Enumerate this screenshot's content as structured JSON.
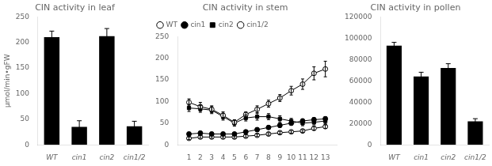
{
  "chart_data": [
    {
      "type": "bar",
      "title": "CIN activity in leaf",
      "categories": [
        "WT",
        "cin1",
        "cin2",
        "cin1/2"
      ],
      "values": [
        210,
        35,
        212,
        36
      ],
      "errors": [
        12,
        12,
        15,
        10
      ],
      "color": "#000000",
      "ylabel": "μmol/min•gFW",
      "ylim": [
        0,
        250
      ],
      "yticks": [
        0,
        50,
        100,
        150,
        200,
        250
      ],
      "grid": false
    },
    {
      "type": "line",
      "title": "CIN activity in stem",
      "x": [
        1,
        2,
        3,
        4,
        5,
        6,
        7,
        8,
        9,
        10,
        11,
        12,
        13
      ],
      "xlim": [
        0,
        14
      ],
      "xticks": [
        1,
        2,
        3,
        4,
        5,
        6,
        7,
        8,
        9,
        10,
        11,
        12,
        13
      ],
      "ylim": [
        0,
        250
      ],
      "yticks": [
        0,
        50,
        100,
        150,
        200,
        250
      ],
      "grid": false,
      "legend": "upper left",
      "series": [
        {
          "name": "WT",
          "color": "#000000",
          "marker": "open_circle",
          "values": [
            98,
            88,
            82,
            68,
            52,
            70,
            82,
            95,
            108,
            125,
            140,
            165,
            175
          ],
          "errors": [
            8,
            10,
            8,
            8,
            6,
            6,
            8,
            8,
            8,
            10,
            12,
            15,
            18
          ]
        },
        {
          "name": "cin1",
          "color": "#000000",
          "marker": "circle",
          "values": [
            25,
            27,
            25,
            25,
            25,
            30,
            35,
            40,
            45,
            50,
            55,
            58,
            60
          ],
          "errors": [
            4,
            4,
            4,
            4,
            3,
            4,
            4,
            4,
            5,
            5,
            5,
            5,
            5
          ]
        },
        {
          "name": "cin2",
          "color": "#000000",
          "marker": "square",
          "values": [
            85,
            83,
            80,
            65,
            50,
            62,
            65,
            65,
            60,
            55,
            50,
            52,
            55
          ],
          "errors": [
            8,
            8,
            8,
            8,
            7,
            7,
            8,
            7,
            7,
            6,
            6,
            6,
            6
          ]
        },
        {
          "name": "cin1/2",
          "color": "#000000",
          "marker": "open_circle",
          "values": [
            15,
            18,
            18,
            18,
            18,
            20,
            22,
            25,
            28,
            30,
            32,
            38,
            42
          ],
          "errors": [
            3,
            3,
            3,
            3,
            3,
            3,
            3,
            3,
            3,
            3,
            3,
            4,
            4
          ]
        }
      ]
    },
    {
      "type": "bar",
      "title": "CIN activity in pollen",
      "categories": [
        "WT",
        "cin1",
        "cin2",
        "cin1/2"
      ],
      "values": [
        93000,
        64000,
        72000,
        22000
      ],
      "errors": [
        3000,
        4000,
        4000,
        2500
      ],
      "color": "#000000",
      "ylim": [
        0,
        120000
      ],
      "yticks": [
        0,
        20000,
        40000,
        60000,
        80000,
        100000,
        120000
      ],
      "grid": false
    }
  ]
}
